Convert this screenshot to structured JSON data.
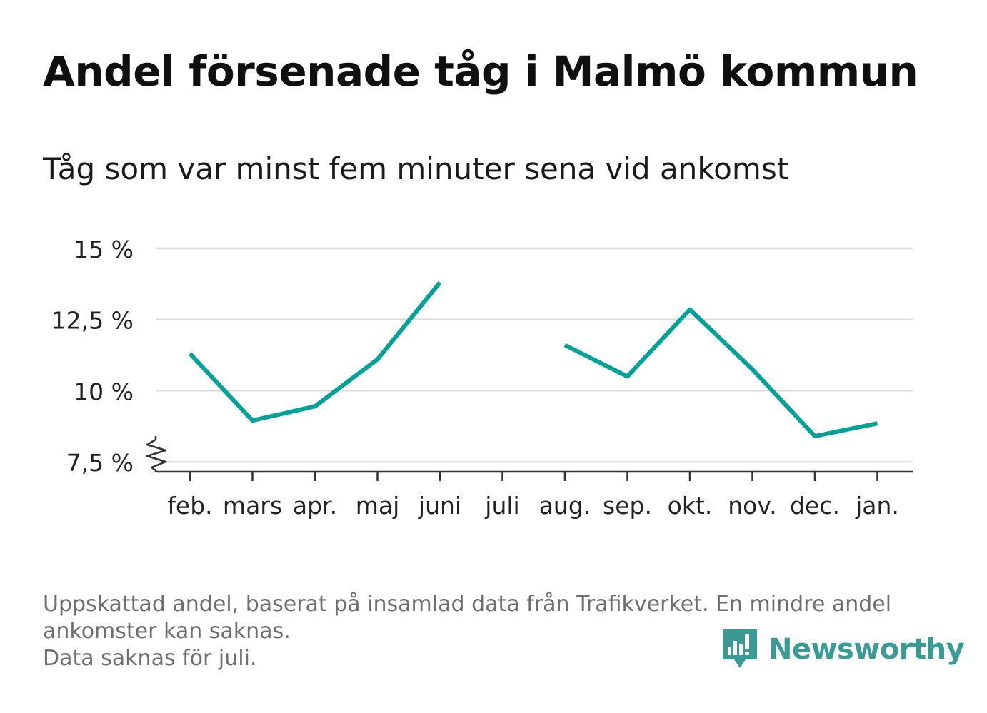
{
  "header": {
    "title": "Andel försenade tåg i Malmö kommun",
    "subtitle": "Tåg som var minst fem minuter sena vid ankomst"
  },
  "chart_data": {
    "type": "line",
    "categories": [
      "feb.",
      "mars",
      "apr.",
      "maj",
      "juni",
      "juli",
      "aug.",
      "sep.",
      "okt.",
      "nov.",
      "dec.",
      "jan."
    ],
    "series": [
      {
        "values": [
          11.3,
          8.95,
          9.45,
          11.1,
          13.8,
          null,
          11.6,
          10.5,
          12.85,
          10.75,
          8.4,
          8.85
        ]
      }
    ],
    "yticks": [
      7.5,
      10,
      12.5,
      15
    ],
    "ytick_labels": [
      "7,5 %",
      "10 %",
      "12,5 %",
      "15 %"
    ],
    "ylim": [
      7.5,
      15
    ],
    "grid": true,
    "axis_break": true,
    "line_color": "#00a199",
    "grid_color": "#dedede",
    "axis_color": "#333333"
  },
  "footer": {
    "line1": "Uppskattad andel, baserat på insamlad data från Trafikverket. En mindre andel",
    "line2": "ankomster kan saknas.",
    "line3": "Data saknas för juli."
  },
  "logo": {
    "text": "Newsworthy",
    "color": "#3a9b94",
    "icon": "newsworthy-logo-icon"
  }
}
